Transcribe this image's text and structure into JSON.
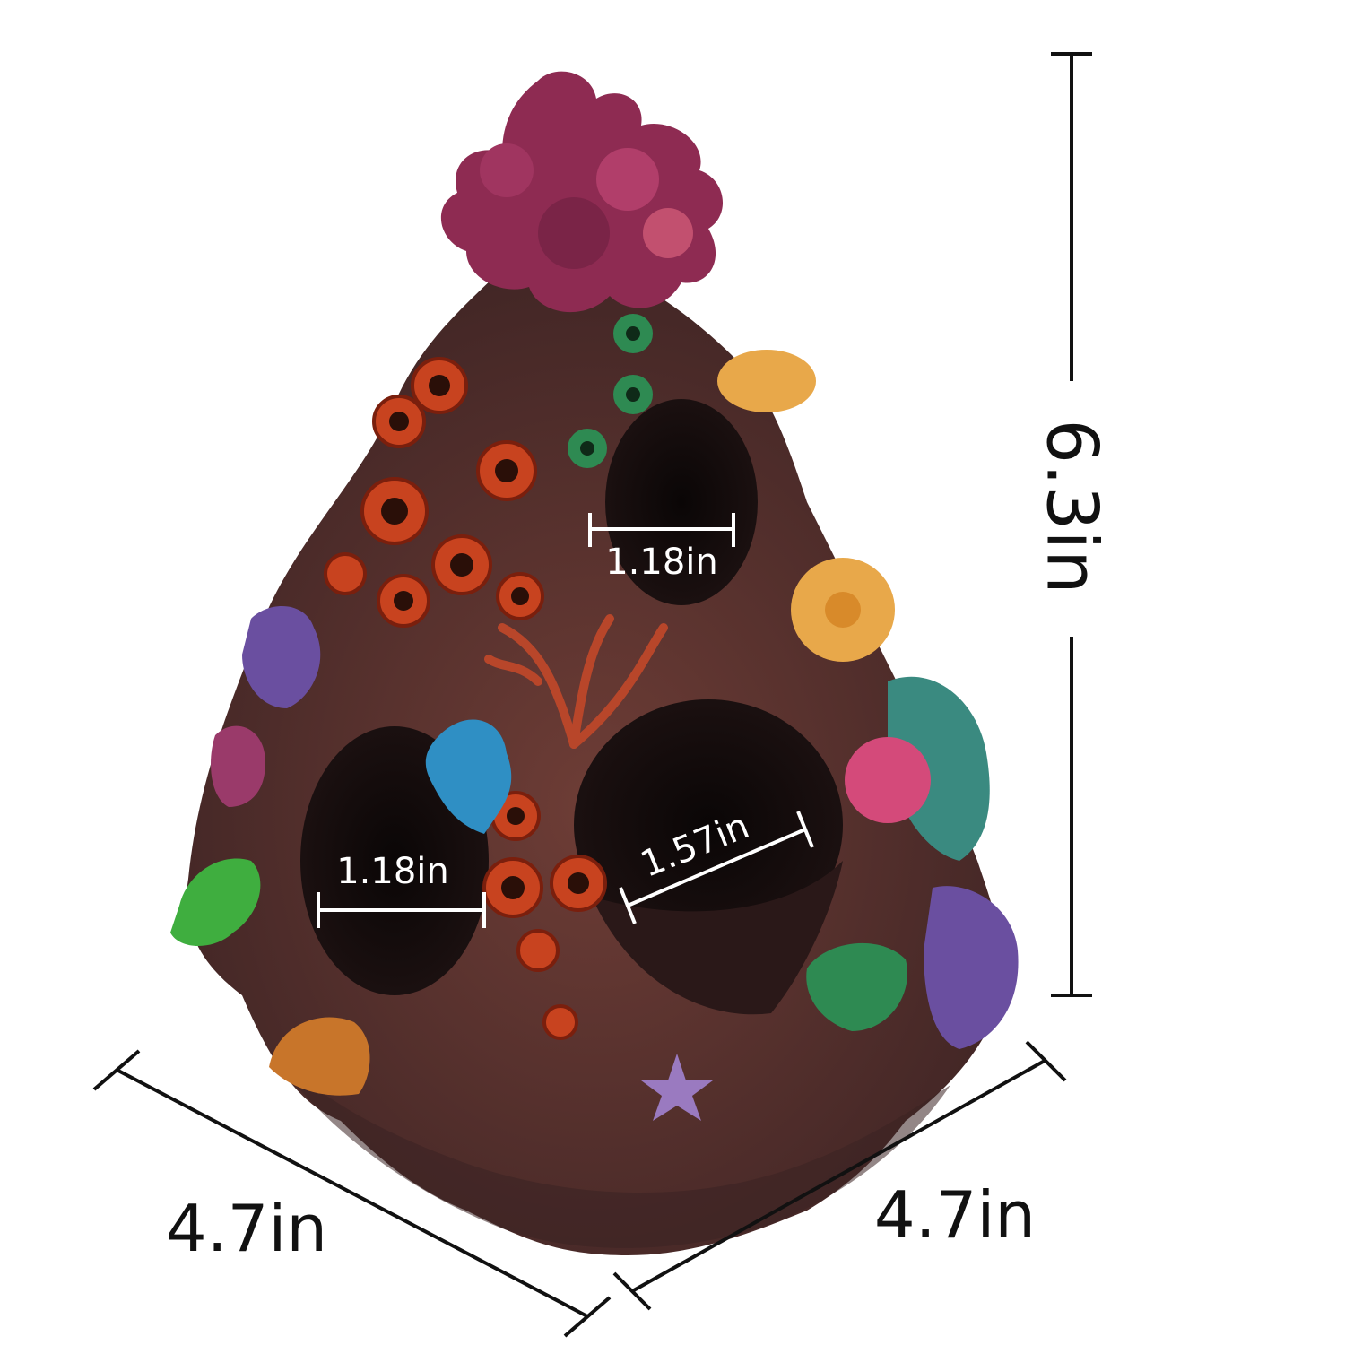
{
  "image": {
    "subject": "aquarium coral rock cave ornament product photo with dimension callouts",
    "background_color": "#ffffff",
    "dimension_line_color": "#111111",
    "inner_measure_color": "#ffffff"
  },
  "dimensions": {
    "height": "6.3in",
    "width_left": "4.7in",
    "width_right": "4.7in",
    "top_opening": "1.18in",
    "left_opening": "1.18in",
    "right_opening": "1.57in"
  },
  "colors": {
    "rock": "#5a3430",
    "rock_dark": "#3a2222",
    "coral_top": "#8e2b52",
    "tube_coral": "#c8431f",
    "green_coral": "#3fae3f",
    "blue_coral": "#2f8fc4",
    "yellow_disc": "#e8a84a",
    "purple_coral": "#6a4fa0",
    "pink_coral": "#d44a7a",
    "teal_coral": "#3a8a80",
    "starfish": "#9a7ac0",
    "shell": "#c8752a"
  }
}
